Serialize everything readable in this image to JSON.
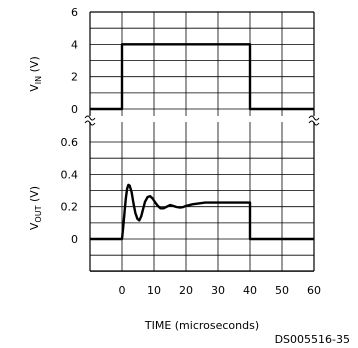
{
  "chart_data": [
    {
      "type": "line",
      "ylabel_main": "V",
      "ylabel_sub": "IN",
      "ylabel_unit": "(V)",
      "yticks": [
        "6",
        "4",
        "2",
        "0"
      ],
      "ylim": [
        -1,
        6
      ],
      "xlim": [
        -10,
        60
      ],
      "grid": true,
      "series": [
        {
          "x": [
            -10,
            0,
            0,
            40,
            40,
            60
          ],
          "y": [
            0,
            0,
            4,
            4,
            0,
            0
          ]
        }
      ]
    },
    {
      "type": "line",
      "ylabel_main": "V",
      "ylabel_sub": "OUT",
      "ylabel_unit": "(V)",
      "yticks": [
        "0.6",
        "0.4",
        "0.2",
        "0"
      ],
      "ylim": [
        -0.2,
        0.7
      ],
      "xlim": [
        -10,
        60
      ],
      "grid": true,
      "series": [
        {
          "x": [
            -10,
            0,
            0.4,
            0.8,
            1.2,
            1.6,
            2.0,
            2.4,
            3.0,
            3.6,
            4.2,
            4.8,
            5.4,
            6.0,
            6.6,
            7.2,
            8.0,
            8.8,
            9.6,
            10.4,
            11.2,
            12.0,
            13.0,
            14.0,
            15.0,
            16.0,
            17.0,
            18.0,
            19.0,
            20.0,
            22.0,
            24.0,
            26.0,
            30.0,
            35.0,
            40.0,
            40.0,
            60.0
          ],
          "y": [
            0,
            0,
            0.08,
            0.17,
            0.25,
            0.31,
            0.335,
            0.33,
            0.29,
            0.22,
            0.16,
            0.125,
            0.115,
            0.14,
            0.185,
            0.23,
            0.26,
            0.265,
            0.25,
            0.225,
            0.205,
            0.19,
            0.19,
            0.2,
            0.21,
            0.205,
            0.198,
            0.195,
            0.197,
            0.205,
            0.215,
            0.22,
            0.225,
            0.225,
            0.225,
            0.225,
            0,
            0
          ]
        }
      ]
    }
  ],
  "xticks": [
    "0",
    "10",
    "20",
    "30",
    "40",
    "50",
    "60"
  ],
  "xlabel": "TIME (microseconds)",
  "figure_code": "DS005516-35"
}
